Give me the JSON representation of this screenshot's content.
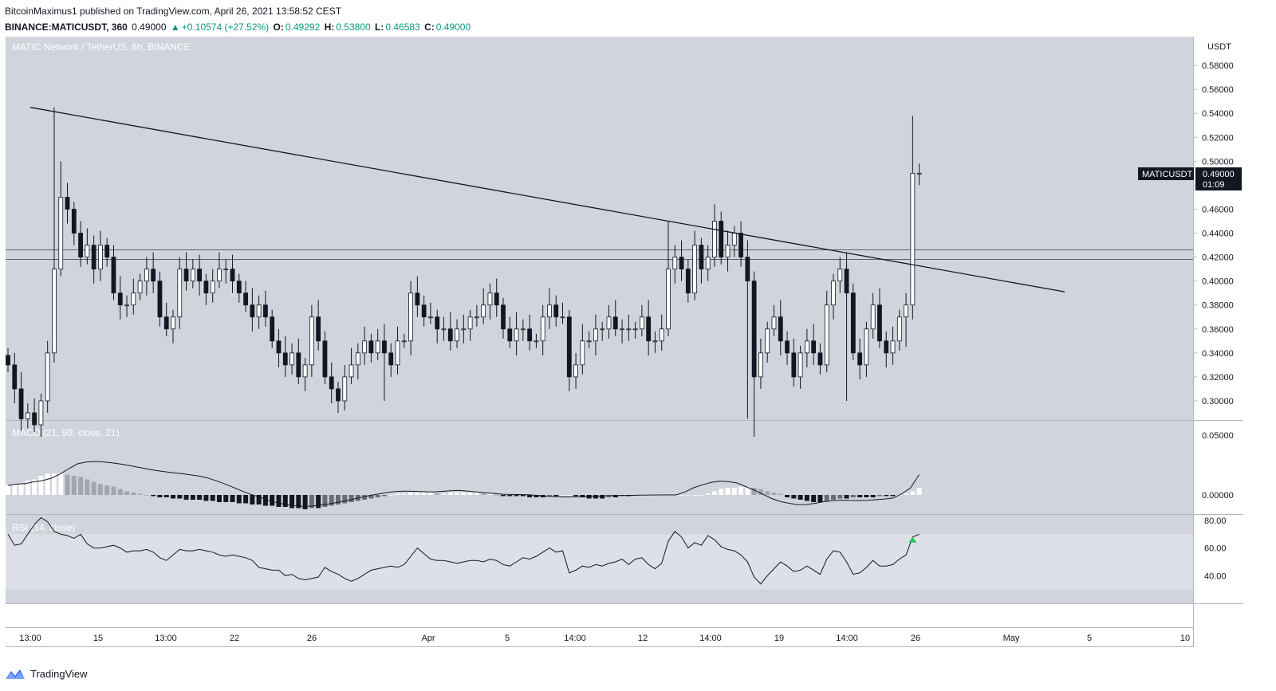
{
  "header": {
    "published_line": "BitcoinMaximus1 published on TradingView.com, April 26, 2021 13:58:52 CEST",
    "author": "BitcoinMaximus1",
    "symbol_line": "BINANCE:MATICUSDT, 360",
    "last": "0.49000",
    "change": "+0.10574 (+27.52%)",
    "open_label": "O:",
    "open": "0.49292",
    "high_label": "H:",
    "high": "0.53800",
    "low_label": "L:",
    "low": "0.46583",
    "close_label": "C:",
    "close": "0.49000"
  },
  "footer": {
    "brand": "TradingView"
  },
  "colors": {
    "pane_bg": "#d1d4dc",
    "rsi_band": "#dde0e6",
    "up_candle": "#ffffff",
    "down_candle": "#131722",
    "line": "#131722",
    "price_tag_bg": "#131722",
    "hdr_green": "#089981",
    "rsi_marker": "#22c55e"
  },
  "chart_data": {
    "type": "candlestick",
    "title": "MATIC Network / TetherUS, 6h, BINANCE",
    "price_axis": {
      "unit": "USDT",
      "ticks": [
        "0.58000",
        "0.56000",
        "0.54000",
        "0.52000",
        "0.50000",
        "0.48000",
        "0.46000",
        "0.44000",
        "0.42000",
        "0.40000",
        "0.38000",
        "0.36000",
        "0.34000",
        "0.32000",
        "0.30000"
      ],
      "ylim": [
        0.284,
        0.604
      ]
    },
    "last_price_tag": {
      "symbol": "MATICUSDT",
      "price": "0.49000",
      "countdown": "01:09"
    },
    "x_axis_labels": [
      "13:00",
      "15",
      "13:00",
      "22",
      "26",
      "Apr",
      "5",
      "14:00",
      "12",
      "14:00",
      "19",
      "14:00",
      "26",
      "May",
      "5",
      "10"
    ],
    "horizontal_levels": [
      0.418,
      0.426
    ],
    "descending_trendline": {
      "from": {
        "date": "Mar 13",
        "price": 0.545
      },
      "to": {
        "date": "May 3",
        "price": 0.391
      }
    },
    "candles_close": [
      0.33,
      0.31,
      0.285,
      0.29,
      0.28,
      0.3,
      0.34,
      0.41,
      0.47,
      0.46,
      0.44,
      0.42,
      0.43,
      0.41,
      0.43,
      0.42,
      0.39,
      0.38,
      0.38,
      0.39,
      0.4,
      0.41,
      0.4,
      0.37,
      0.36,
      0.37,
      0.41,
      0.4,
      0.41,
      0.4,
      0.39,
      0.4,
      0.41,
      0.41,
      0.4,
      0.39,
      0.38,
      0.37,
      0.38,
      0.37,
      0.35,
      0.34,
      0.33,
      0.34,
      0.32,
      0.33,
      0.37,
      0.35,
      0.32,
      0.31,
      0.3,
      0.32,
      0.33,
      0.34,
      0.35,
      0.34,
      0.35,
      0.34,
      0.33,
      0.35,
      0.35,
      0.39,
      0.38,
      0.37,
      0.37,
      0.36,
      0.36,
      0.35,
      0.36,
      0.36,
      0.37,
      0.37,
      0.38,
      0.39,
      0.38,
      0.36,
      0.35,
      0.36,
      0.36,
      0.35,
      0.35,
      0.37,
      0.38,
      0.37,
      0.37,
      0.32,
      0.33,
      0.35,
      0.35,
      0.36,
      0.36,
      0.37,
      0.36,
      0.36,
      0.36,
      0.36,
      0.37,
      0.35,
      0.35,
      0.36,
      0.41,
      0.42,
      0.41,
      0.39,
      0.43,
      0.41,
      0.42,
      0.45,
      0.42,
      0.43,
      0.44,
      0.42,
      0.4,
      0.32,
      0.34,
      0.36,
      0.37,
      0.35,
      0.34,
      0.32,
      0.34,
      0.35,
      0.34,
      0.33,
      0.38,
      0.4,
      0.41,
      0.39,
      0.34,
      0.33,
      0.36,
      0.38,
      0.35,
      0.34,
      0.35,
      0.37,
      0.38,
      0.49,
      0.49
    ],
    "indicators": [
      {
        "name": "MACD (21, 50, close, 21)",
        "ticks": [
          "0.05000",
          "0.00000"
        ],
        "ylim": [
          -0.016,
          0.062
        ],
        "macd_line": [
          0.008,
          0.009,
          0.0095,
          0.011,
          0.012,
          0.014,
          0.0175,
          0.022,
          0.026,
          0.0275,
          0.028,
          0.0276,
          0.0268,
          0.0258,
          0.0246,
          0.0232,
          0.0218,
          0.0205,
          0.0195,
          0.0186,
          0.0178,
          0.0168,
          0.0158,
          0.0142,
          0.0118,
          0.0092,
          0.0062,
          0.0032,
          0.0005,
          -0.0018,
          -0.0045,
          -0.0065,
          -0.008,
          -0.009,
          -0.0095,
          -0.0093,
          -0.0085,
          -0.0075,
          -0.0062,
          -0.0048,
          -0.0032,
          -0.0015,
          0.0,
          0.0012,
          0.0024,
          0.003,
          0.0032,
          0.003,
          0.0027,
          0.0025,
          0.003,
          0.0035,
          0.0038,
          0.0032,
          0.0025,
          0.0018,
          0.0012,
          0.0006,
          0.0004,
          0.0003,
          0.0002,
          -0.0004,
          -0.001,
          -0.0014,
          -0.0017,
          -0.0017,
          -0.0015,
          -0.0012,
          -0.001,
          -0.0007,
          -0.0005,
          -0.0004,
          -0.0003,
          -0.0002,
          -0.0001,
          0.0,
          0.0,
          0.0,
          0.0025,
          0.006,
          0.0085,
          0.0105,
          0.0115,
          0.0112,
          0.01,
          0.007,
          0.004,
          0.0005,
          -0.003,
          -0.0055,
          -0.007,
          -0.0082,
          -0.008,
          -0.007,
          -0.0057,
          -0.0048,
          -0.0043,
          -0.0046,
          -0.0047,
          -0.0045,
          -0.004,
          -0.0034,
          -0.0026,
          0.001,
          0.006,
          0.017
        ],
        "histogram": [
          0.008,
          0.009,
          0.009,
          0.012,
          0.013,
          0.016,
          0.018,
          0.018,
          0.018,
          0.017,
          0.016,
          0.015,
          0.013,
          0.011,
          0.009,
          0.008,
          0.007,
          0.005,
          0.003,
          0.002,
          0.001,
          0.0,
          -0.001,
          -0.002,
          -0.002,
          -0.003,
          -0.003,
          -0.004,
          -0.004,
          -0.004,
          -0.005,
          -0.005,
          -0.006,
          -0.006,
          -0.006,
          -0.007,
          -0.007,
          -0.008,
          -0.008,
          -0.009,
          -0.009,
          -0.01,
          -0.01,
          -0.011,
          -0.011,
          -0.012,
          -0.011,
          -0.011,
          -0.01,
          -0.009,
          -0.008,
          -0.007,
          -0.006,
          -0.005,
          -0.004,
          -0.003,
          -0.002,
          -0.001,
          0.0,
          0.001,
          0.001,
          0.002,
          0.002,
          0.002,
          0.002,
          0.001,
          0.001,
          0.002,
          0.002,
          0.002,
          0.002,
          0.002,
          0.001,
          0.001,
          0.0,
          -0.001,
          -0.001,
          -0.001,
          -0.001,
          -0.002,
          -0.002,
          -0.002,
          -0.001,
          -0.001,
          0.0,
          0.0,
          -0.001,
          -0.002,
          -0.003,
          -0.003,
          -0.003,
          -0.002,
          -0.002,
          -0.001,
          -0.001,
          0.0,
          0.0,
          0.0,
          0.0,
          0.0,
          0.0,
          0.0,
          0.0,
          0.0,
          0.0,
          0.0,
          0.001,
          0.003,
          0.005,
          0.006,
          0.006,
          0.007,
          0.007,
          0.006,
          0.005,
          0.003,
          0.002,
          0.001,
          -0.002,
          -0.003,
          -0.004,
          -0.005,
          -0.006,
          -0.006,
          -0.005,
          -0.004,
          -0.003,
          -0.003,
          -0.002,
          -0.002,
          -0.002,
          -0.002,
          -0.001,
          -0.001,
          -0.001,
          0.0,
          0.001,
          0.003,
          0.006
        ]
      },
      {
        "name": "RSI (14, close)",
        "ticks": [
          "80.00",
          "60.00",
          "40.00"
        ],
        "ylim": [
          20,
          84
        ],
        "band": [
          30,
          70
        ],
        "values": [
          70,
          62,
          63,
          70,
          77,
          82,
          79,
          72,
          70,
          69,
          67,
          70,
          63,
          60,
          60,
          61,
          62,
          60,
          57,
          58,
          58,
          59,
          57,
          53,
          51,
          55,
          59,
          58,
          58,
          59,
          58,
          57,
          55,
          54,
          55,
          54,
          53,
          51,
          46,
          45,
          44,
          44,
          40,
          41,
          38,
          37,
          38,
          39,
          46,
          43,
          41,
          38,
          36,
          38,
          41,
          44,
          45,
          46,
          47,
          46,
          48,
          54,
          60,
          56,
          52,
          51,
          51,
          50,
          49,
          50,
          51,
          51,
          50,
          52,
          51,
          48,
          47,
          50,
          53,
          52,
          54,
          57,
          60,
          57,
          58,
          42,
          44,
          47,
          46,
          48,
          47,
          49,
          50,
          52,
          48,
          52,
          53,
          48,
          45,
          49,
          65,
          72,
          68,
          60,
          64,
          62,
          69,
          66,
          61,
          59,
          58,
          55,
          50,
          39,
          34,
          40,
          45,
          50,
          47,
          43,
          44,
          47,
          44,
          41,
          52,
          58,
          57,
          50,
          41,
          42,
          46,
          51,
          47,
          47,
          48,
          52,
          55,
          68,
          70
        ]
      }
    ]
  }
}
